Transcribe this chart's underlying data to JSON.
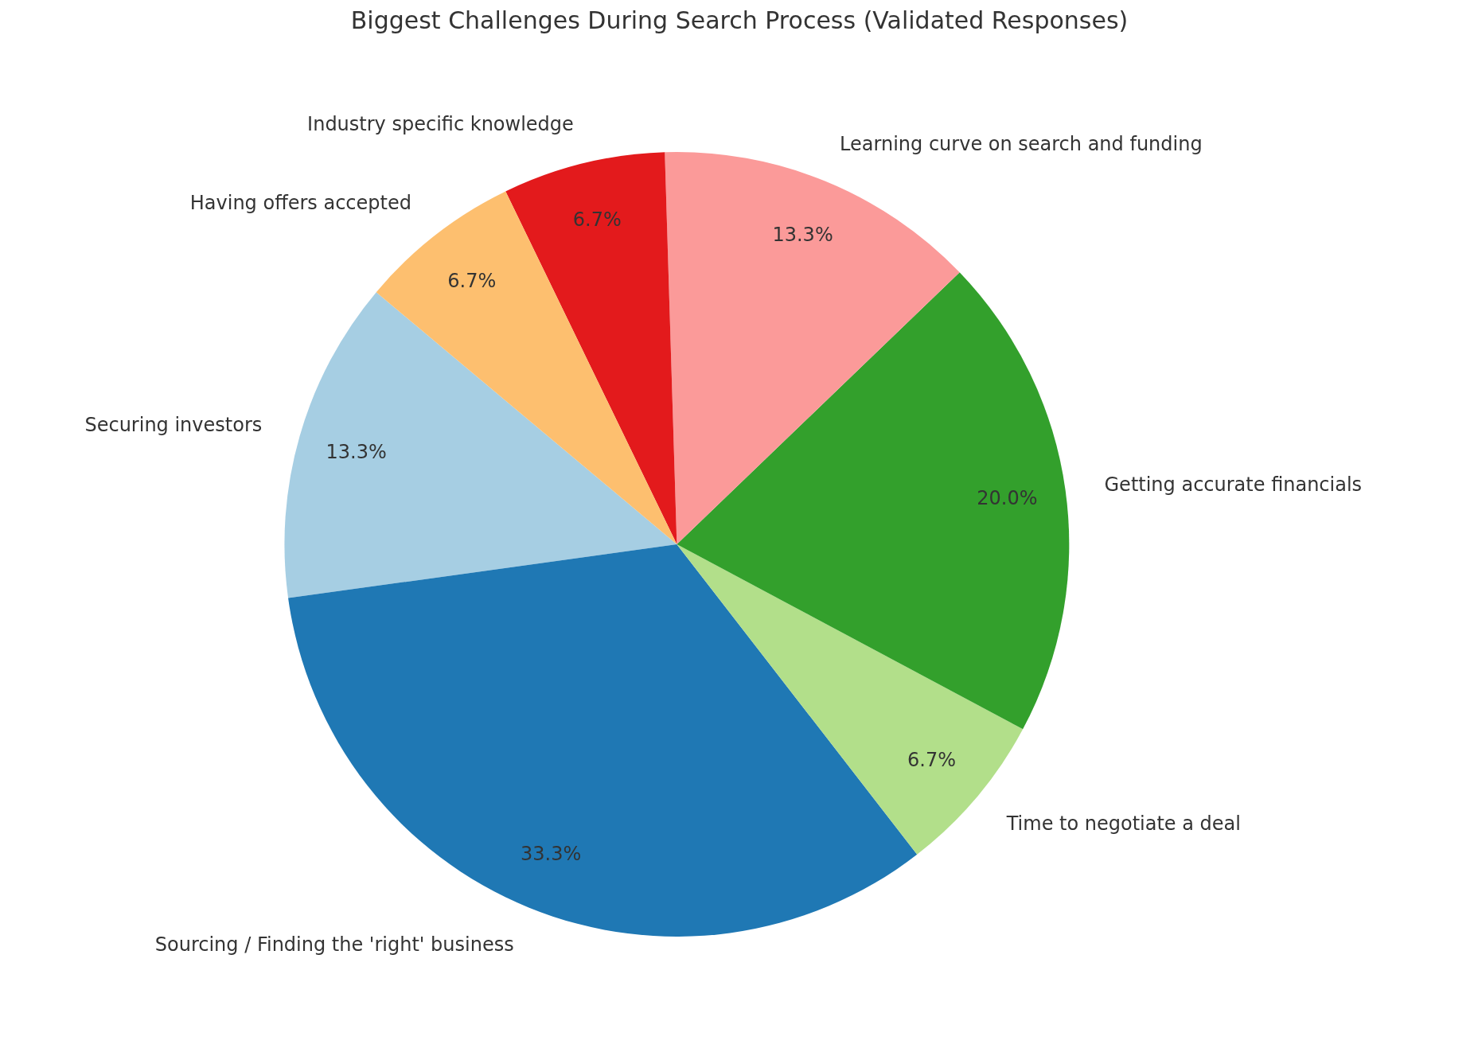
{
  "chart_data": {
    "type": "pie",
    "title": "Biggest Challenges During Search Process (Validated Responses)",
    "categories": [
      "Securing investors",
      "Sourcing / Finding the 'right' business",
      "Time to negotiate a deal",
      "Getting accurate financials",
      "Learning curve on search and funding",
      "Industry specific knowledge",
      "Having offers accepted"
    ],
    "values": [
      13.3,
      33.3,
      6.7,
      20.0,
      13.3,
      6.7,
      6.7
    ],
    "colors": [
      "#a6cee3",
      "#1f78b4",
      "#b2df8a",
      "#33a02c",
      "#fb9a99",
      "#e31a1c",
      "#fdbf6f"
    ],
    "value_labels": [
      "13.3%",
      "33.3%",
      "6.7%",
      "20.0%",
      "13.3%",
      "6.7%",
      "6.7%"
    ]
  }
}
